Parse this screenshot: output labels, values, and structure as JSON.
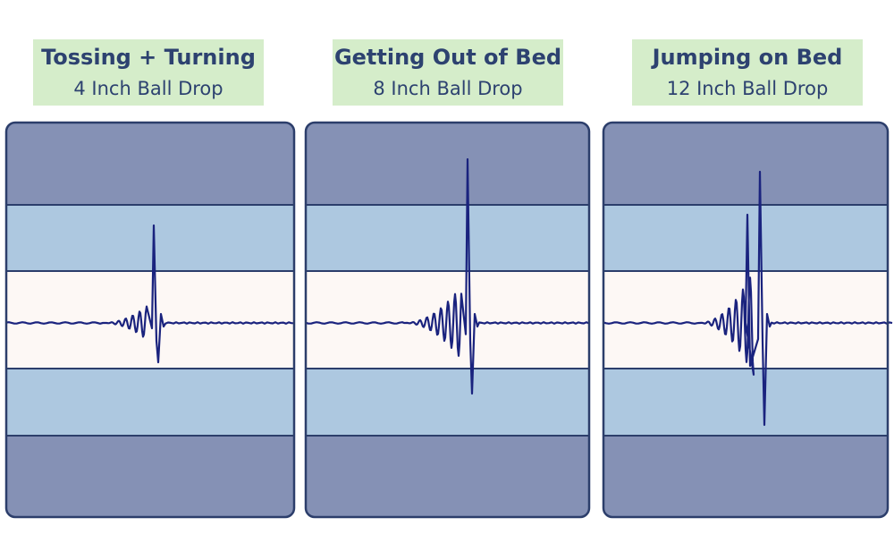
{
  "panels": [
    {
      "title": "Tossing + Turning",
      "subtitle": "4 Inch Ball Drop"
    },
    {
      "title": "Getting Out of Bed",
      "subtitle": "8 Inch Ball Drop"
    },
    {
      "title": "Jumping on Bed",
      "subtitle": "12 Inch Ball Drop"
    }
  ]
}
